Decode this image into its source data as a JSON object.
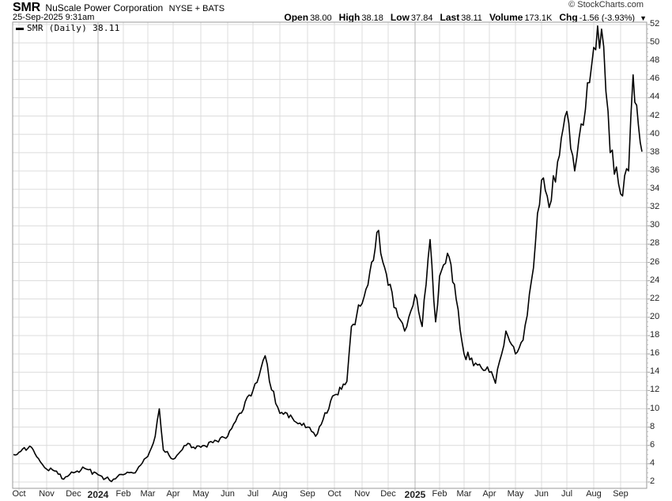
{
  "header": {
    "ticker": "SMR",
    "company": "NuScale Power Corporation",
    "exchange": "NYSE + BATS",
    "datetime": "25-Sep-2025 9:31am",
    "brand": "© StockCharts.com"
  },
  "quote": {
    "open_label": "Open",
    "open": "38.00",
    "high_label": "High",
    "high": "38.18",
    "low_label": "Low",
    "low": "37.84",
    "last_label": "Last",
    "last": "38.11",
    "volume_label": "Volume",
    "volume": "173.1K",
    "chg_label": "Chg",
    "chg": "-1.56 (-3.93%)",
    "dropdown_icon": "caret-down-icon"
  },
  "legend": {
    "label": "SMR (Daily) 38.11"
  },
  "colors": {
    "line": "#000000",
    "grid": "#dcdcdc",
    "grid_year": "#b4b4b4",
    "frame": "#999999"
  },
  "chart_data": {
    "type": "line",
    "title": "SMR NuScale Power Corporation NYSE + BATS",
    "subtitle": "25-Sep-2025 9:31am",
    "xlabel": "",
    "ylabel": "",
    "ylim": [
      1,
      52.5
    ],
    "grid": true,
    "legend_position": "top-left",
    "y_ticks": [
      2,
      4,
      6,
      8,
      10,
      12,
      14,
      16,
      18,
      20,
      22,
      24,
      26,
      28,
      30,
      32,
      34,
      36,
      38,
      40,
      42,
      44,
      46,
      48,
      50,
      52
    ],
    "x_ticks": [
      "Oct",
      "Nov",
      "Dec",
      "2024",
      "Feb",
      "Mar",
      "Apr",
      "May",
      "Jun",
      "Jul",
      "Aug",
      "Sep",
      "Oct",
      "Nov",
      "Dec",
      "2025",
      "Feb",
      "Mar",
      "Apr",
      "May",
      "Jun",
      "Jul",
      "Aug",
      "Sep"
    ],
    "series": [
      {
        "name": "SMR (Daily)",
        "last": 38.11,
        "x": [
          "2023-09-25",
          "2023-10-05",
          "2023-10-15",
          "2023-10-25",
          "2023-11-01",
          "2023-11-10",
          "2023-11-20",
          "2023-12-01",
          "2023-12-15",
          "2024-01-01",
          "2024-01-15",
          "2024-02-01",
          "2024-02-15",
          "2024-03-01",
          "2024-03-10",
          "2024-03-15",
          "2024-03-20",
          "2024-04-01",
          "2024-04-15",
          "2024-05-01",
          "2024-05-15",
          "2024-06-01",
          "2024-06-15",
          "2024-07-01",
          "2024-07-15",
          "2024-07-20",
          "2024-08-01",
          "2024-08-15",
          "2024-09-01",
          "2024-09-10",
          "2024-10-01",
          "2024-10-15",
          "2024-10-20",
          "2024-11-01",
          "2024-11-10",
          "2024-11-20",
          "2024-11-25",
          "2024-12-01",
          "2024-12-10",
          "2024-12-20",
          "2025-01-01",
          "2025-01-10",
          "2025-01-20",
          "2025-01-27",
          "2025-02-01",
          "2025-02-10",
          "2025-02-20",
          "2025-03-01",
          "2025-03-15",
          "2025-04-01",
          "2025-04-08",
          "2025-04-20",
          "2025-05-01",
          "2025-05-10",
          "2025-05-20",
          "2025-06-01",
          "2025-06-10",
          "2025-06-20",
          "2025-07-01",
          "2025-07-10",
          "2025-07-20",
          "2025-08-01",
          "2025-08-10",
          "2025-08-20",
          "2025-09-01",
          "2025-09-10",
          "2025-09-15",
          "2025-09-25"
        ],
        "values": [
          5.0,
          5.6,
          5.8,
          4.2,
          3.4,
          3.2,
          2.3,
          3.0,
          3.5,
          2.8,
          2.2,
          2.8,
          3.0,
          4.8,
          7.0,
          10.0,
          5.5,
          4.5,
          6.0,
          5.8,
          6.3,
          7.0,
          9.5,
          12.0,
          15.8,
          13.0,
          9.5,
          9.0,
          8.0,
          7.0,
          11.5,
          13.0,
          19.0,
          21.5,
          25.0,
          29.5,
          26.0,
          23.5,
          21.0,
          18.5,
          22.5,
          19.0,
          28.5,
          19.5,
          24.5,
          27.0,
          22.0,
          16.0,
          15.0,
          14.0,
          12.8,
          18.5,
          16.0,
          17.5,
          24.0,
          35.0,
          32.0,
          37.0,
          42.5,
          36.0,
          41.0,
          49.5,
          51.5,
          38.0,
          33.5,
          36.0,
          46.5,
          38.11
        ]
      }
    ]
  }
}
